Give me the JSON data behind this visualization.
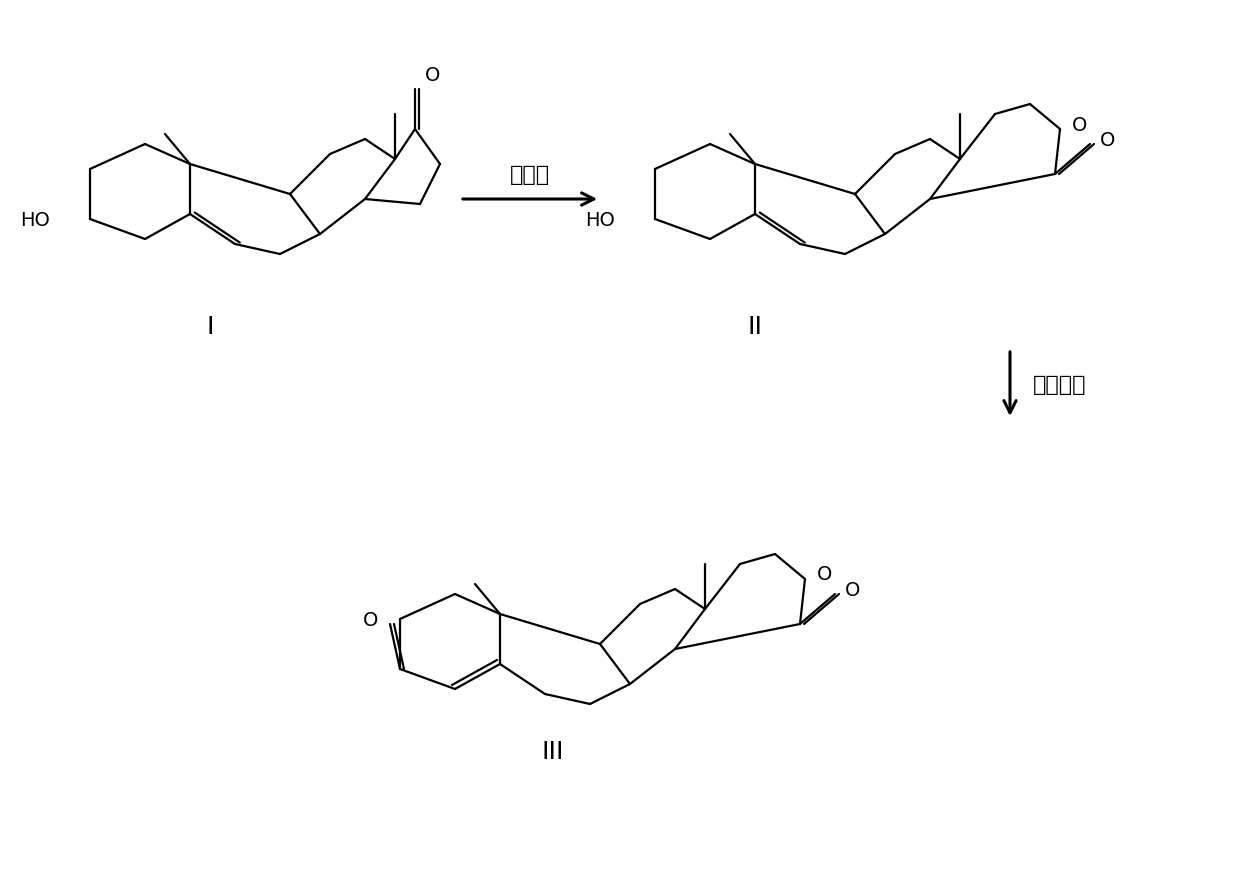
{
  "background_color": "#ffffff",
  "line_color": "#000000",
  "line_width": 1.6,
  "label_I": "I",
  "label_II": "II",
  "label_III": "III",
  "arrow1_label": "镌刀菌",
  "arrow2_label": "戈登氏菌",
  "font_size_label": 18,
  "font_size_chem": 14,
  "font_size_arrow": 16
}
